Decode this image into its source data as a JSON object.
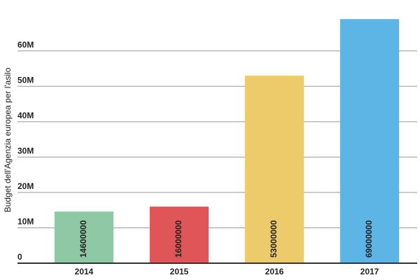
{
  "chart_data": {
    "type": "bar",
    "y_label": "Budget dell'Agenzia europea per l'asilo",
    "categories": [
      "2014",
      "2015",
      "2016",
      "2017"
    ],
    "values": [
      14600000,
      16000000,
      53000000,
      69000000
    ],
    "colors": [
      "#8fc8a4",
      "#e05557",
      "#eecb6a",
      "#5db5e5"
    ],
    "ylim": [
      0,
      74000000
    ],
    "yticks": [
      0,
      {
        "value": 10000000,
        "label": "10M"
      },
      {
        "value": 20000000,
        "label": "20M"
      },
      {
        "value": 30000000,
        "label": "30M"
      },
      {
        "value": 40000000,
        "label": "40M"
      },
      {
        "value": 50000000,
        "label": "50M"
      },
      {
        "value": 60000000,
        "label": "60M"
      }
    ],
    "grid": true
  }
}
